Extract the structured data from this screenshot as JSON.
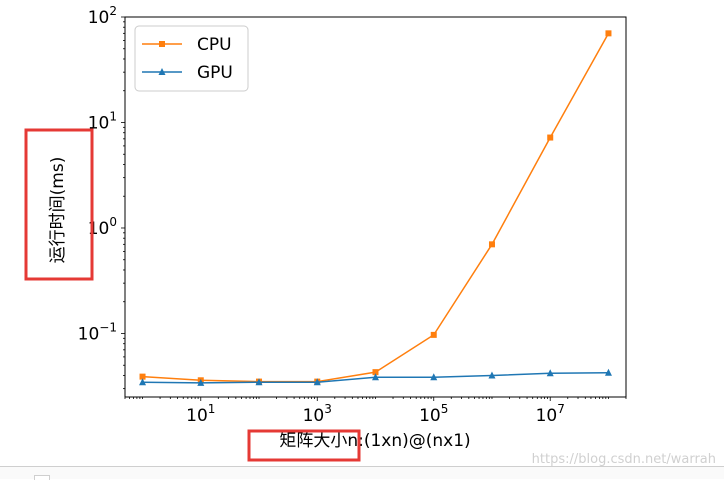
{
  "chart_data": {
    "type": "line",
    "title": "",
    "xlabel": "矩阵大小n:(1xn)@(nx1)",
    "ylabel": "运行时间(ms)",
    "xscale": "log",
    "yscale": "log",
    "xlim": [
      0.5,
      200000000
    ],
    "ylim": [
      0.025,
      100
    ],
    "x": [
      1,
      10,
      100,
      1000,
      10000,
      100000,
      1000000,
      10000000,
      100000000
    ],
    "xticks": [
      10,
      1000,
      100000,
      10000000
    ],
    "xtick_labels": [
      {
        "base": "10",
        "exp": "1"
      },
      {
        "base": "10",
        "exp": "3"
      },
      {
        "base": "10",
        "exp": "5"
      },
      {
        "base": "10",
        "exp": "7"
      }
    ],
    "yticks": [
      0.1,
      1,
      10,
      100
    ],
    "ytick_labels": [
      {
        "base": "10",
        "exp": "−1"
      },
      {
        "base": "10",
        "exp": "0"
      },
      {
        "base": "10",
        "exp": "1"
      },
      {
        "base": "10",
        "exp": "2"
      }
    ],
    "series": [
      {
        "name": "CPU",
        "color": "#ff7f0e",
        "marker": "square",
        "values": [
          0.039,
          0.036,
          0.035,
          0.035,
          0.043,
          0.097,
          0.7,
          7.2,
          70
        ]
      },
      {
        "name": "GPU",
        "color": "#1f77b4",
        "marker": "triangle",
        "values": [
          0.0345,
          0.034,
          0.0345,
          0.0345,
          0.0385,
          0.0385,
          0.04,
          0.042,
          0.0425
        ]
      }
    ],
    "legend_position": "top-left",
    "grid": false,
    "annotations": [
      "red rectangle around y-axis label",
      "red rectangle around x-axis label"
    ],
    "highlight_color": "#e53935"
  },
  "watermark": "https://blog.csdn.net/warrah"
}
